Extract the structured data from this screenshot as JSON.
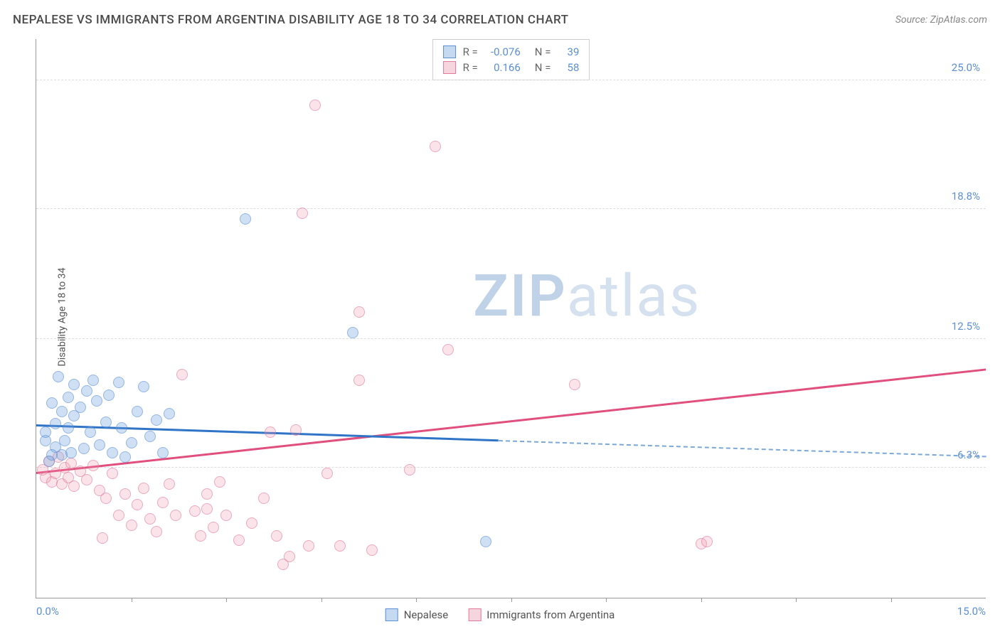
{
  "header": {
    "title": "NEPALESE VS IMMIGRANTS FROM ARGENTINA DISABILITY AGE 18 TO 34 CORRELATION CHART",
    "source": "Source: ZipAtlas.com"
  },
  "chart": {
    "type": "scatter",
    "y_axis_label": "Disability Age 18 to 34",
    "background_color": "#ffffff",
    "grid_color": "#dddddd",
    "axis_color": "#999999",
    "xlim": [
      0,
      15
    ],
    "ylim": [
      0,
      27
    ],
    "y_ticks": [
      {
        "value": 6.3,
        "label": "6.3%"
      },
      {
        "value": 12.5,
        "label": "12.5%"
      },
      {
        "value": 18.8,
        "label": "18.8%"
      },
      {
        "value": 25.0,
        "label": "25.0%"
      }
    ],
    "x_tick_positions": [
      1.5,
      3.0,
      4.5,
      6.0,
      7.5,
      9.0,
      10.5,
      12.0,
      13.5
    ],
    "x_labels": {
      "min": "0.0%",
      "max": "15.0%"
    },
    "watermark": {
      "bold": "ZIP",
      "rest": "atlas"
    },
    "series_blue": {
      "name": "Nepalese",
      "color_fill": "rgba(110,160,220,0.5)",
      "color_stroke": "#5b8fd6",
      "marker_size": 16,
      "trend": {
        "x1": 0,
        "y1": 8.3,
        "x_solid_end": 7.3,
        "x2": 15,
        "y2": 6.8,
        "solid_color": "#2f74c7",
        "dash_color": "#7aa8da"
      },
      "points": [
        {
          "x": 0.15,
          "y": 7.6
        },
        {
          "x": 0.15,
          "y": 8.0
        },
        {
          "x": 0.2,
          "y": 6.6
        },
        {
          "x": 0.25,
          "y": 9.4
        },
        {
          "x": 0.3,
          "y": 7.3
        },
        {
          "x": 0.3,
          "y": 8.4
        },
        {
          "x": 0.35,
          "y": 10.7
        },
        {
          "x": 0.4,
          "y": 6.9
        },
        {
          "x": 0.4,
          "y": 9.0
        },
        {
          "x": 0.45,
          "y": 7.6
        },
        {
          "x": 0.5,
          "y": 8.2
        },
        {
          "x": 0.5,
          "y": 9.7
        },
        {
          "x": 0.55,
          "y": 7.0
        },
        {
          "x": 0.6,
          "y": 10.3
        },
        {
          "x": 0.6,
          "y": 8.8
        },
        {
          "x": 0.7,
          "y": 9.2
        },
        {
          "x": 0.75,
          "y": 7.2
        },
        {
          "x": 0.8,
          "y": 10.0
        },
        {
          "x": 0.85,
          "y": 8.0
        },
        {
          "x": 0.9,
          "y": 10.5
        },
        {
          "x": 0.95,
          "y": 9.5
        },
        {
          "x": 1.0,
          "y": 7.4
        },
        {
          "x": 1.1,
          "y": 8.5
        },
        {
          "x": 1.15,
          "y": 9.8
        },
        {
          "x": 1.2,
          "y": 7.0
        },
        {
          "x": 1.3,
          "y": 10.4
        },
        {
          "x": 1.35,
          "y": 8.2
        },
        {
          "x": 1.4,
          "y": 6.8
        },
        {
          "x": 1.5,
          "y": 7.5
        },
        {
          "x": 1.6,
          "y": 9.0
        },
        {
          "x": 1.7,
          "y": 10.2
        },
        {
          "x": 1.8,
          "y": 7.8
        },
        {
          "x": 1.9,
          "y": 8.6
        },
        {
          "x": 2.0,
          "y": 7.0
        },
        {
          "x": 2.1,
          "y": 8.9
        },
        {
          "x": 3.3,
          "y": 18.3
        },
        {
          "x": 5.0,
          "y": 12.8
        },
        {
          "x": 7.1,
          "y": 2.7
        },
        {
          "x": 0.25,
          "y": 6.9
        }
      ]
    },
    "series_pink": {
      "name": "Immigrants from Argentina",
      "color_fill": "rgba(235,150,175,0.4)",
      "color_stroke": "#e47a9b",
      "marker_size": 16,
      "trend": {
        "x1": 0,
        "y1": 6.0,
        "x_solid_end": 15,
        "x2": 15,
        "y2": 11.0,
        "solid_color": "#e04f7d",
        "dash_color": "#e47a9b"
      },
      "points": [
        {
          "x": 0.1,
          "y": 6.2
        },
        {
          "x": 0.15,
          "y": 5.8
        },
        {
          "x": 0.2,
          "y": 6.6
        },
        {
          "x": 0.25,
          "y": 5.6
        },
        {
          "x": 0.3,
          "y": 6.0
        },
        {
          "x": 0.35,
          "y": 6.8
        },
        {
          "x": 0.4,
          "y": 5.5
        },
        {
          "x": 0.45,
          "y": 6.3
        },
        {
          "x": 0.5,
          "y": 5.8
        },
        {
          "x": 0.55,
          "y": 6.5
        },
        {
          "x": 0.6,
          "y": 5.4
        },
        {
          "x": 0.7,
          "y": 6.1
        },
        {
          "x": 0.8,
          "y": 5.7
        },
        {
          "x": 0.9,
          "y": 6.4
        },
        {
          "x": 1.0,
          "y": 5.2
        },
        {
          "x": 1.1,
          "y": 4.8
        },
        {
          "x": 1.2,
          "y": 6.0
        },
        {
          "x": 1.3,
          "y": 4.0
        },
        {
          "x": 1.4,
          "y": 5.0
        },
        {
          "x": 1.5,
          "y": 3.5
        },
        {
          "x": 1.6,
          "y": 4.5
        },
        {
          "x": 1.7,
          "y": 5.3
        },
        {
          "x": 1.8,
          "y": 3.8
        },
        {
          "x": 1.9,
          "y": 3.2
        },
        {
          "x": 2.0,
          "y": 4.6
        },
        {
          "x": 2.1,
          "y": 5.5
        },
        {
          "x": 2.2,
          "y": 4.0
        },
        {
          "x": 2.3,
          "y": 10.8
        },
        {
          "x": 2.5,
          "y": 4.2
        },
        {
          "x": 2.6,
          "y": 3.0
        },
        {
          "x": 2.7,
          "y": 5.0
        },
        {
          "x": 2.7,
          "y": 4.3
        },
        {
          "x": 2.8,
          "y": 3.4
        },
        {
          "x": 2.9,
          "y": 5.6
        },
        {
          "x": 3.0,
          "y": 4.0
        },
        {
          "x": 3.2,
          "y": 2.8
        },
        {
          "x": 3.4,
          "y": 3.6
        },
        {
          "x": 3.6,
          "y": 4.8
        },
        {
          "x": 3.7,
          "y": 8.0
        },
        {
          "x": 3.8,
          "y": 3.0
        },
        {
          "x": 3.9,
          "y": 1.6
        },
        {
          "x": 4.0,
          "y": 2.0
        },
        {
          "x": 4.1,
          "y": 8.1
        },
        {
          "x": 4.2,
          "y": 18.6
        },
        {
          "x": 4.3,
          "y": 2.5
        },
        {
          "x": 4.4,
          "y": 23.8
        },
        {
          "x": 4.6,
          "y": 6.0
        },
        {
          "x": 4.8,
          "y": 2.5
        },
        {
          "x": 5.1,
          "y": 10.5
        },
        {
          "x": 5.1,
          "y": 13.8
        },
        {
          "x": 5.3,
          "y": 2.3
        },
        {
          "x": 5.9,
          "y": 6.2
        },
        {
          "x": 6.3,
          "y": 21.8
        },
        {
          "x": 6.5,
          "y": 12.0
        },
        {
          "x": 8.5,
          "y": 10.3
        },
        {
          "x": 10.5,
          "y": 2.6
        },
        {
          "x": 10.6,
          "y": 2.7
        },
        {
          "x": 1.05,
          "y": 2.9
        }
      ]
    },
    "stats": {
      "blue": {
        "r_label": "R =",
        "r": "-0.076",
        "n_label": "N =",
        "n": "39"
      },
      "pink": {
        "r_label": "R =",
        "r": "0.166",
        "n_label": "N =",
        "n": "58"
      }
    },
    "legend": {
      "blue_label": "Nepalese",
      "pink_label": "Immigrants from Argentina"
    }
  }
}
